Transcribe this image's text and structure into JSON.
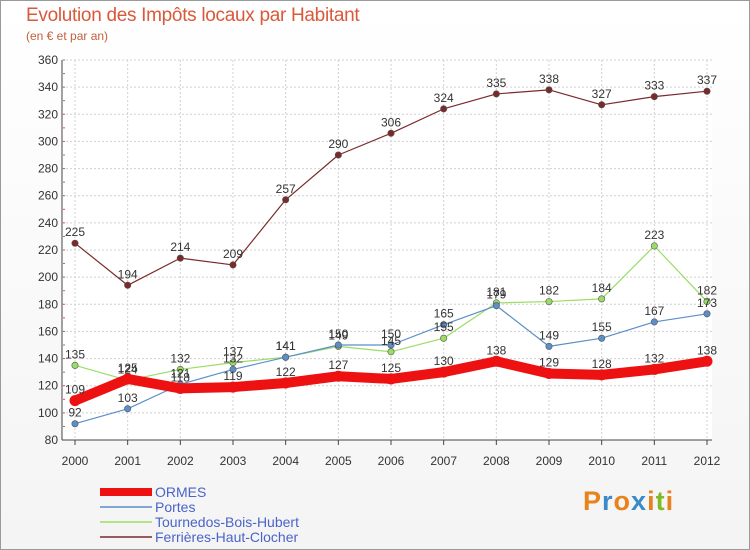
{
  "title": "Evolution des Impôts locaux par Habitant",
  "subtitle": "(en € et par an)",
  "logo": {
    "letters": [
      "P",
      "r",
      "o",
      "x",
      "i",
      "t",
      "i"
    ],
    "colors": [
      "#e8821c",
      "#3a8ac8",
      "#e8821c",
      "#3a8ac8",
      "#e8821c",
      "#7fba2a",
      "#e8821c"
    ]
  },
  "chart_data": {
    "type": "line",
    "title": "Evolution des Impôts locaux par Habitant",
    "subtitle": "(en € et par an)",
    "xlabel": "",
    "ylabel": "",
    "ylim": [
      80,
      360
    ],
    "yticks": [
      80,
      100,
      120,
      140,
      160,
      180,
      200,
      220,
      240,
      260,
      280,
      300,
      320,
      340,
      360
    ],
    "x": [
      "2000",
      "2001",
      "2002",
      "2003",
      "2004",
      "2005",
      "2006",
      "2007",
      "2008",
      "2009",
      "2010",
      "2011",
      "2012"
    ],
    "grid": true,
    "legend_position": "bottom-left",
    "series": [
      {
        "name": "ORMES",
        "color": "#ee1111",
        "width": 10,
        "values": [
          109,
          125,
          118,
          119,
          122,
          127,
          125,
          130,
          138,
          129,
          128,
          132,
          138
        ],
        "labels": [
          "109",
          "125",
          "118",
          "119",
          "122",
          "127",
          "125",
          "130",
          "138",
          "129",
          "128",
          "132",
          "138"
        ]
      },
      {
        "name": "Portes",
        "color": "#5b8fc8",
        "width": 1.2,
        "values": [
          92,
          103,
          121,
          132,
          141,
          150,
          150,
          165,
          179,
          149,
          155,
          167,
          173
        ],
        "labels": [
          "92",
          "103",
          "121",
          "132",
          "141",
          "150",
          "150",
          "165",
          "179",
          "149",
          "155",
          "167",
          "173"
        ]
      },
      {
        "name": "Tournedos-Bois-Hubert",
        "color": "#99dd66",
        "width": 1.2,
        "values": [
          135,
          124,
          132,
          137,
          141,
          149,
          145,
          155,
          181,
          182,
          184,
          223,
          182
        ],
        "labels": [
          "135",
          "124",
          "132",
          "137",
          "141",
          "149",
          "145",
          "155",
          "181",
          "182",
          "184",
          "223",
          "182"
        ]
      },
      {
        "name": "Ferrières-Haut-Clocher",
        "color": "#7a2a2a",
        "width": 1.2,
        "values": [
          225,
          194,
          214,
          209,
          257,
          290,
          306,
          324,
          335,
          338,
          327,
          333,
          337
        ],
        "labels": [
          "225",
          "194",
          "214",
          "209",
          "257",
          "290",
          "306",
          "324",
          "335",
          "338",
          "327",
          "333",
          "337"
        ]
      }
    ]
  }
}
